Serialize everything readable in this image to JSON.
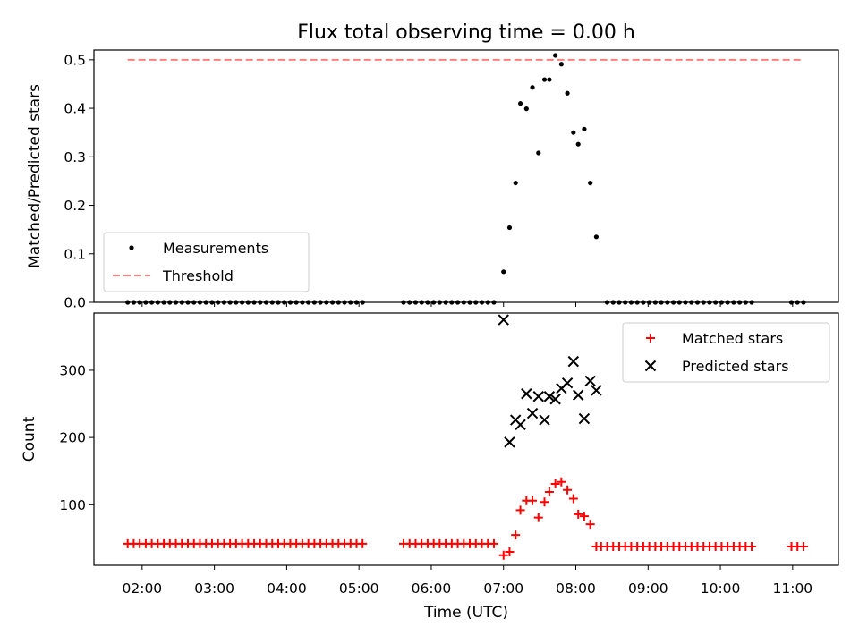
{
  "title": "Flux total observing time = 0.00 h",
  "time_ticks": [
    "02:00",
    "03:00",
    "04:00",
    "05:00",
    "06:00",
    "07:00",
    "08:00",
    "09:00",
    "10:00",
    "11:00"
  ],
  "chart_data": [
    {
      "type": "scatter",
      "title": "Flux total observing time = 0.00 h",
      "ylabel": "Matched/Predicted stars",
      "ylim": [
        0,
        0.52
      ],
      "yticks": [
        "0.0",
        "0.1",
        "0.2",
        "0.3",
        "0.4",
        "0.5"
      ],
      "legend_placement": "lower-left",
      "series": [
        {
          "name": "Measurements",
          "color": "#000000",
          "marker": "dot",
          "points": [
            [
              "01:48",
              0
            ],
            [
              "01:53",
              0
            ],
            [
              "01:58",
              0
            ],
            [
              "02:03",
              0
            ],
            [
              "02:08",
              0
            ],
            [
              "02:13",
              0
            ],
            [
              "02:18",
              0
            ],
            [
              "02:23",
              0
            ],
            [
              "02:28",
              0
            ],
            [
              "02:33",
              0
            ],
            [
              "02:38",
              0
            ],
            [
              "02:43",
              0
            ],
            [
              "02:48",
              0
            ],
            [
              "02:53",
              0
            ],
            [
              "02:58",
              0
            ],
            [
              "03:03",
              0
            ],
            [
              "03:08",
              0
            ],
            [
              "03:13",
              0
            ],
            [
              "03:18",
              0
            ],
            [
              "03:23",
              0
            ],
            [
              "03:28",
              0
            ],
            [
              "03:33",
              0
            ],
            [
              "03:38",
              0
            ],
            [
              "03:43",
              0
            ],
            [
              "03:48",
              0
            ],
            [
              "03:53",
              0
            ],
            [
              "03:58",
              0
            ],
            [
              "04:03",
              0
            ],
            [
              "04:08",
              0
            ],
            [
              "04:13",
              0
            ],
            [
              "04:18",
              0
            ],
            [
              "04:23",
              0
            ],
            [
              "04:28",
              0
            ],
            [
              "04:33",
              0
            ],
            [
              "04:38",
              0
            ],
            [
              "04:43",
              0
            ],
            [
              "04:48",
              0
            ],
            [
              "04:53",
              0
            ],
            [
              "04:58",
              0
            ],
            [
              "05:03",
              0
            ],
            [
              "05:37",
              0
            ],
            [
              "05:42",
              0
            ],
            [
              "05:47",
              0
            ],
            [
              "05:52",
              0
            ],
            [
              "05:57",
              0
            ],
            [
              "06:02",
              0
            ],
            [
              "06:07",
              0
            ],
            [
              "06:12",
              0
            ],
            [
              "06:17",
              0
            ],
            [
              "06:22",
              0
            ],
            [
              "06:27",
              0
            ],
            [
              "06:32",
              0
            ],
            [
              "06:37",
              0
            ],
            [
              "06:42",
              0
            ],
            [
              "06:47",
              0
            ],
            [
              "06:52",
              0
            ],
            [
              "07:00",
              0.063
            ],
            [
              "07:05",
              0.154
            ],
            [
              "07:10",
              0.246
            ],
            [
              "07:14",
              0.41
            ],
            [
              "07:19",
              0.399
            ],
            [
              "07:24",
              0.443
            ],
            [
              "07:29",
              0.308
            ],
            [
              "07:34",
              0.459
            ],
            [
              "07:38",
              0.459
            ],
            [
              "07:43",
              0.509
            ],
            [
              "07:48",
              0.491
            ],
            [
              "07:53",
              0.431
            ],
            [
              "07:58",
              0.35
            ],
            [
              "08:02",
              0.326
            ],
            [
              "08:07",
              0.357
            ],
            [
              "08:12",
              0.246
            ],
            [
              "08:17",
              0.135
            ],
            [
              "08:26",
              0
            ],
            [
              "08:31",
              0
            ],
            [
              "08:36",
              0
            ],
            [
              "08:41",
              0
            ],
            [
              "08:46",
              0
            ],
            [
              "08:51",
              0
            ],
            [
              "08:56",
              0
            ],
            [
              "09:01",
              0
            ],
            [
              "09:06",
              0
            ],
            [
              "09:11",
              0
            ],
            [
              "09:16",
              0
            ],
            [
              "09:21",
              0
            ],
            [
              "09:26",
              0
            ],
            [
              "09:31",
              0
            ],
            [
              "09:36",
              0
            ],
            [
              "09:41",
              0
            ],
            [
              "09:46",
              0
            ],
            [
              "09:51",
              0
            ],
            [
              "09:56",
              0
            ],
            [
              "10:01",
              0
            ],
            [
              "10:06",
              0
            ],
            [
              "10:11",
              0
            ],
            [
              "10:16",
              0
            ],
            [
              "10:21",
              0
            ],
            [
              "10:26",
              0
            ],
            [
              "10:59",
              0
            ],
            [
              "11:04",
              0
            ],
            [
              "11:09",
              0
            ]
          ]
        },
        {
          "name": "Threshold",
          "color": "#ff7f7f",
          "style": "dashed",
          "points": [
            [
              "01:48",
              0.5
            ],
            [
              "11:09",
              0.5
            ]
          ]
        }
      ]
    },
    {
      "type": "scatter",
      "xlabel": "Time (UTC)",
      "ylabel": "Count",
      "ylim": [
        10,
        385
      ],
      "yticks": [
        "100",
        "200",
        "300"
      ],
      "legend_placement": "upper-right",
      "series": [
        {
          "name": "Matched stars",
          "color": "#ff0000",
          "marker": "plus",
          "points": [
            [
              "01:48",
              42
            ],
            [
              "01:53",
              42
            ],
            [
              "01:58",
              42
            ],
            [
              "02:03",
              42
            ],
            [
              "02:08",
              42
            ],
            [
              "02:13",
              42
            ],
            [
              "02:18",
              42
            ],
            [
              "02:23",
              42
            ],
            [
              "02:28",
              42
            ],
            [
              "02:33",
              42
            ],
            [
              "02:38",
              42
            ],
            [
              "02:43",
              42
            ],
            [
              "02:48",
              42
            ],
            [
              "02:53",
              42
            ],
            [
              "02:58",
              42
            ],
            [
              "03:03",
              42
            ],
            [
              "03:08",
              42
            ],
            [
              "03:13",
              42
            ],
            [
              "03:18",
              42
            ],
            [
              "03:23",
              42
            ],
            [
              "03:28",
              42
            ],
            [
              "03:33",
              42
            ],
            [
              "03:38",
              42
            ],
            [
              "03:43",
              42
            ],
            [
              "03:48",
              42
            ],
            [
              "03:53",
              42
            ],
            [
              "03:58",
              42
            ],
            [
              "04:03",
              42
            ],
            [
              "04:08",
              42
            ],
            [
              "04:13",
              42
            ],
            [
              "04:18",
              42
            ],
            [
              "04:23",
              42
            ],
            [
              "04:28",
              42
            ],
            [
              "04:33",
              42
            ],
            [
              "04:38",
              42
            ],
            [
              "04:43",
              42
            ],
            [
              "04:48",
              42
            ],
            [
              "04:53",
              42
            ],
            [
              "04:58",
              42
            ],
            [
              "05:03",
              42
            ],
            [
              "05:37",
              42
            ],
            [
              "05:42",
              42
            ],
            [
              "05:47",
              42
            ],
            [
              "05:52",
              42
            ],
            [
              "05:57",
              42
            ],
            [
              "06:02",
              42
            ],
            [
              "06:07",
              42
            ],
            [
              "06:12",
              42
            ],
            [
              "06:17",
              42
            ],
            [
              "06:22",
              42
            ],
            [
              "06:27",
              42
            ],
            [
              "06:32",
              42
            ],
            [
              "06:37",
              42
            ],
            [
              "06:42",
              42
            ],
            [
              "06:47",
              42
            ],
            [
              "06:52",
              42
            ],
            [
              "07:00",
              25
            ],
            [
              "07:05",
              30
            ],
            [
              "07:10",
              55
            ],
            [
              "07:14",
              92
            ],
            [
              "07:19",
              106
            ],
            [
              "07:24",
              106
            ],
            [
              "07:29",
              81
            ],
            [
              "07:34",
              104
            ],
            [
              "07:38",
              119
            ],
            [
              "07:43",
              131
            ],
            [
              "07:48",
              134
            ],
            [
              "07:53",
              122
            ],
            [
              "07:58",
              109
            ],
            [
              "08:02",
              86
            ],
            [
              "08:07",
              83
            ],
            [
              "08:12",
              71
            ],
            [
              "08:17",
              38
            ],
            [
              "08:21",
              38
            ],
            [
              "08:26",
              38
            ],
            [
              "08:31",
              38
            ],
            [
              "08:36",
              38
            ],
            [
              "08:41",
              38
            ],
            [
              "08:46",
              38
            ],
            [
              "08:51",
              38
            ],
            [
              "08:56",
              38
            ],
            [
              "09:01",
              38
            ],
            [
              "09:06",
              38
            ],
            [
              "09:11",
              38
            ],
            [
              "09:16",
              38
            ],
            [
              "09:21",
              38
            ],
            [
              "09:26",
              38
            ],
            [
              "09:31",
              38
            ],
            [
              "09:36",
              38
            ],
            [
              "09:41",
              38
            ],
            [
              "09:46",
              38
            ],
            [
              "09:51",
              38
            ],
            [
              "09:56",
              38
            ],
            [
              "10:01",
              38
            ],
            [
              "10:06",
              38
            ],
            [
              "10:11",
              38
            ],
            [
              "10:16",
              38
            ],
            [
              "10:21",
              38
            ],
            [
              "10:26",
              38
            ],
            [
              "10:59",
              38
            ],
            [
              "11:04",
              38
            ],
            [
              "11:09",
              38
            ]
          ]
        },
        {
          "name": "Predicted stars",
          "color": "#000000",
          "marker": "x",
          "points": [
            [
              "07:00",
              375
            ],
            [
              "07:05",
              193
            ],
            [
              "07:10",
              226
            ],
            [
              "07:14",
              219
            ],
            [
              "07:19",
              265
            ],
            [
              "07:24",
              236
            ],
            [
              "07:29",
              261
            ],
            [
              "07:34",
              226
            ],
            [
              "07:38",
              261
            ],
            [
              "07:43",
              257
            ],
            [
              "07:48",
              273
            ],
            [
              "07:53",
              281
            ],
            [
              "07:58",
              313
            ],
            [
              "08:02",
              263
            ],
            [
              "08:07",
              228
            ],
            [
              "08:12",
              284
            ],
            [
              "08:17",
              270
            ]
          ]
        }
      ]
    }
  ]
}
